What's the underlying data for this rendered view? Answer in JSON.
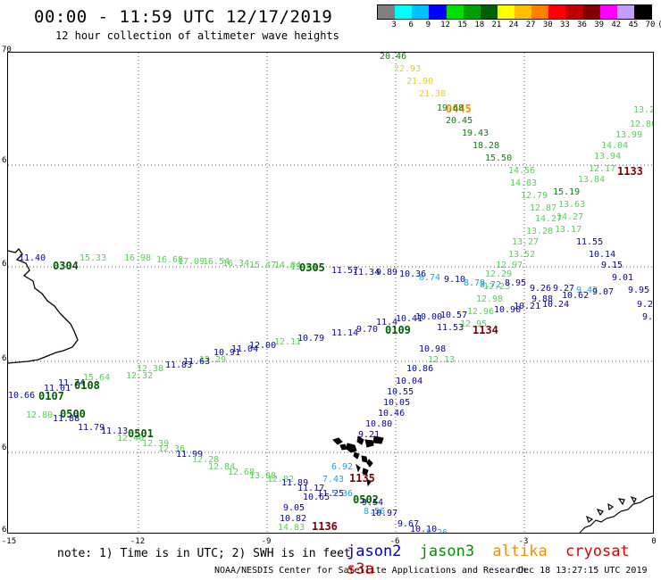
{
  "header": {
    "title": "00:00 - 11:59 UTC 12/17/2019",
    "subtitle": "12 hour collection of altimeter wave heights"
  },
  "scale": {
    "labels": [
      "3",
      "6",
      "9",
      "12",
      "15",
      "18",
      "21",
      "24",
      "27",
      "30",
      "33",
      "36",
      "39",
      "42",
      "45",
      "70",
      "(ft)"
    ],
    "colors": [
      "#808080",
      "#00ffff",
      "#00c0ff",
      "#0000ff",
      "#00e000",
      "#00a000",
      "#006000",
      "#ffff00",
      "#ffc000",
      "#ff8000",
      "#ff0000",
      "#c00000",
      "#800000",
      "#ff00ff",
      "#c0a0ff",
      "#000000"
    ]
  },
  "axes": {
    "lat_labels": [
      "70",
      "68",
      "66",
      "64",
      "62",
      "60"
    ],
    "lon_labels": [
      "-15",
      "-12",
      "-9",
      "-6",
      "-3",
      "0"
    ]
  },
  "satellite_colors": {
    "jason2": "#0000c0",
    "jason3": "#009000",
    "altika": "#f09000",
    "cryosat": "#a00000"
  },
  "tracks": [
    {
      "sat": "jason3",
      "time": "0445",
      "time_color": "#f09000",
      "points": [
        [
          "20.46",
          "#008800"
        ],
        [
          "22.93",
          "#e8d800"
        ],
        [
          "21.90",
          "#e8d800"
        ],
        [
          "21.38",
          "#e8d800"
        ],
        [
          "19.68",
          "#008800"
        ],
        [
          "20.45",
          "#008800"
        ],
        [
          "19.43",
          "#008800"
        ],
        [
          "18.28",
          "#008800"
        ],
        [
          "15.50",
          "#008800"
        ],
        [
          "14.56",
          "#44dd44"
        ],
        [
          "14.83",
          "#44dd44"
        ],
        [
          "12.79",
          "#44dd44"
        ],
        [
          "12.87",
          "#44dd44"
        ],
        [
          "14.27",
          "#44dd44"
        ],
        [
          "13.28",
          "#44dd44"
        ],
        [
          "13.27",
          "#44dd44"
        ],
        [
          "13.52",
          "#44dd44"
        ],
        [
          "12.97",
          "#44dd44"
        ],
        [
          "12.29",
          "#44dd44"
        ],
        [
          "12.23",
          "#44dd44"
        ],
        [
          "12.98",
          "#44dd44"
        ],
        [
          "12.96",
          "#44dd44"
        ],
        [
          "12.95",
          "#44dd44"
        ],
        [
          "12.13",
          "#44dd44"
        ]
      ]
    },
    {
      "sat": "cryosat",
      "time": "1133",
      "points": [
        [
          "14.19",
          "#44dd44"
        ],
        [
          "13.22",
          "#44dd44"
        ],
        [
          "12.80",
          "#44dd44"
        ],
        [
          "13.99",
          "#44dd44"
        ],
        [
          "14.04",
          "#44dd44"
        ],
        [
          "13.94",
          "#44dd44"
        ],
        [
          "12.17",
          "#44dd44"
        ],
        [
          "13.84",
          "#44dd44"
        ],
        [
          "15.19",
          "#008800"
        ],
        [
          "13.63",
          "#44dd44"
        ],
        [
          "14.27",
          "#44dd44"
        ],
        [
          "13.17",
          "#44dd44"
        ],
        [
          "11.55",
          "#0000c0"
        ],
        [
          "10.14",
          "#0000c0"
        ],
        [
          "9.15",
          "#0000c0"
        ],
        [
          "9.01",
          "#0000c0"
        ],
        [
          "9.95",
          "#0000c0"
        ],
        [
          "9.21",
          "#0000c0"
        ],
        [
          "9.14",
          "#0000c0"
        ],
        [
          "9.93",
          "#0000c0"
        ]
      ]
    },
    {
      "sat": "jason3",
      "time": "0304",
      "points": [
        [
          "11.40",
          "#0000c0"
        ],
        [
          "15.33",
          "#44dd44"
        ],
        [
          "16.98",
          "#44dd44"
        ],
        [
          "16.68",
          "#44dd44"
        ],
        [
          "17.09",
          "#44dd44"
        ],
        [
          "16.54",
          "#44dd44"
        ],
        [
          "16.34",
          "#44dd44"
        ],
        [
          "15.47",
          "#44dd44"
        ],
        [
          "14.04",
          "#44dd44"
        ],
        [
          "13.63",
          "#44dd44"
        ]
      ]
    },
    {
      "sat": "jason3",
      "time": "0305",
      "points": [
        [
          "11.57",
          "#0000c0"
        ],
        [
          "11.34",
          "#0000c0"
        ],
        [
          "9.89",
          "#0000c0"
        ],
        [
          "10.36",
          "#0000c0"
        ],
        [
          "8.74",
          "#00aaff"
        ],
        [
          "9.10",
          "#0000c0"
        ],
        [
          "8.79",
          "#00aaff"
        ],
        [
          "8.72",
          "#00aaff"
        ],
        [
          "8.95",
          "#0000c0"
        ],
        [
          "9.26",
          "#0000c0"
        ],
        [
          "9.27",
          "#0000c0"
        ],
        [
          "9.43",
          "#00aaff"
        ],
        [
          "9.07",
          "#0000c0"
        ]
      ]
    },
    {
      "sat": "jason2",
      "time": "0109",
      "points": [
        [
          "10.62",
          "#0000c0"
        ],
        [
          "9.88",
          "#0000c0"
        ],
        [
          "10.24",
          "#0000c0"
        ],
        [
          "10.21",
          "#0000c0"
        ],
        [
          "10.90",
          "#0000c0"
        ],
        [
          "10.57",
          "#0000c0"
        ],
        [
          "10.00",
          "#0000c0"
        ],
        [
          "10.41",
          "#0000c0"
        ],
        [
          "11.4",
          "#0000c0"
        ],
        [
          "9.70",
          "#0000c0"
        ],
        [
          "11.14",
          "#0000c0"
        ],
        [
          "10.79",
          "#0000c0"
        ],
        [
          "12.11",
          "#44dd44"
        ],
        [
          "12.00",
          "#0000c0"
        ],
        [
          "11.04",
          "#0000c0"
        ],
        [
          "10.91",
          "#0000c0"
        ],
        [
          "12.29",
          "#44dd44"
        ],
        [
          "11.63",
          "#0000c0"
        ],
        [
          "11.83",
          "#0000c0"
        ],
        [
          "12.38",
          "#44dd44"
        ],
        [
          "12.32",
          "#44dd44"
        ],
        [
          "15.64",
          "#44dd44"
        ],
        [
          "11.74",
          "#0000c0"
        ],
        [
          "11.01",
          "#0000c0"
        ],
        [
          "10.66",
          "#0000c0"
        ]
      ]
    },
    {
      "sat": "jason2",
      "time": "0108",
      "points": []
    },
    {
      "sat": "jason2",
      "time": "0107",
      "points": []
    },
    {
      "sat": "jason3",
      "time": "0500",
      "points": [
        [
          "12.80",
          "#44dd44"
        ],
        [
          "11.88",
          "#0000c0"
        ],
        [
          "11.79",
          "#0000c0"
        ],
        [
          "11.13",
          "#0000c0"
        ],
        [
          "12.40",
          "#44dd44"
        ],
        [
          "12.39",
          "#44dd44"
        ],
        [
          "12.36",
          "#44dd44"
        ],
        [
          "11.99",
          "#0000c0"
        ],
        [
          "12.28",
          "#44dd44"
        ],
        [
          "12.84",
          "#44dd44"
        ],
        [
          "12.68",
          "#44dd44"
        ],
        [
          "13.08",
          "#44dd44"
        ],
        [
          "12.82",
          "#44dd44"
        ],
        [
          "11.89",
          "#0000c0"
        ],
        [
          "11.17",
          "#0000c0"
        ],
        [
          "11.25",
          "#0000c0"
        ],
        [
          "10.65",
          "#0000c0"
        ],
        [
          "9.05",
          "#0000c0"
        ],
        [
          "10.82",
          "#0000c0"
        ],
        [
          "14.83",
          "#44dd44"
        ]
      ]
    },
    {
      "sat": "jason3",
      "time": "0501",
      "points": []
    },
    {
      "sat": "jason2",
      "time": "0502",
      "points": [
        [
          "11.53",
          "#0000c0"
        ],
        [
          "10.98",
          "#0000c0"
        ],
        [
          "10.86",
          "#0000c0"
        ],
        [
          "10.04",
          "#0000c0"
        ],
        [
          "10.55",
          "#0000c0"
        ],
        [
          "10.05",
          "#0000c0"
        ],
        [
          "10.46",
          "#0000c0"
        ],
        [
          "10.80",
          "#0000c0"
        ],
        [
          "9.21",
          "#0000c0"
        ],
        [
          "6.92",
          "#00aaff"
        ],
        [
          "7.43",
          "#00aaff"
        ],
        [
          "5.36",
          "#00aaff"
        ],
        [
          "9.54",
          "#0000c0"
        ],
        [
          "8.56",
          "#00aaff"
        ],
        [
          "10.97",
          "#0000c0"
        ],
        [
          "9.67",
          "#0000c0"
        ],
        [
          "10.10",
          "#0000c0"
        ],
        [
          "8.26",
          "#00aaff"
        ]
      ]
    },
    {
      "sat": "cryosat",
      "time": "1134",
      "points": []
    },
    {
      "sat": "cryosat",
      "time": "1135",
      "points": []
    },
    {
      "sat": "cryosat",
      "time": "1136",
      "points": []
    }
  ],
  "footer": {
    "note": "note: 1) Time is in UTC; 2) SWH is in feet",
    "legend": {
      "jason2": "jason2",
      "jason3": "jason3",
      "altika": "altika",
      "cryosat": "cryosat s3a"
    },
    "credit": "NOAA/NESDIS Center for Satellite Applications and Research",
    "timestamp": "Dec 18 13:27:15 UTC 2019"
  }
}
